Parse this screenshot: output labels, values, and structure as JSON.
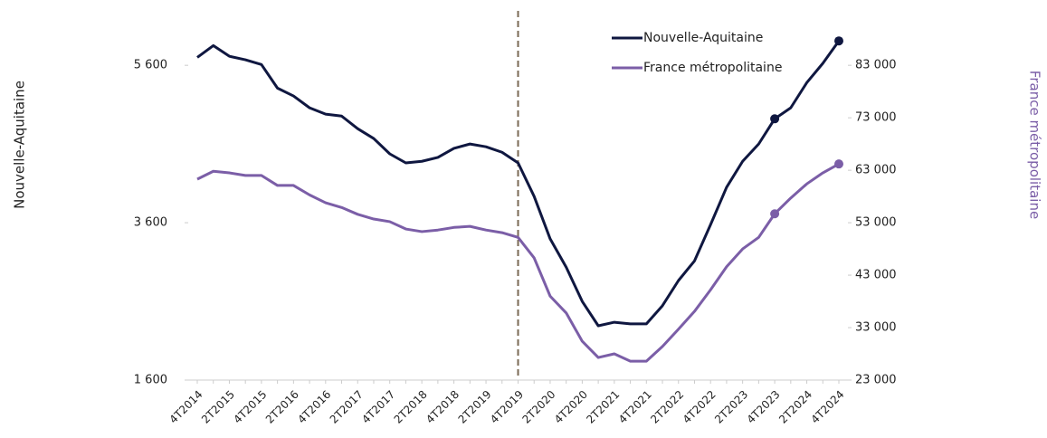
{
  "chart_data": {
    "type": "line",
    "y_label": "Nouvelle-Aquitaine",
    "y2_label": "France métropolitaine",
    "categories": [
      "4T2014",
      null,
      "2T2015",
      null,
      "4T2015",
      null,
      "2T2016",
      null,
      "4T2016",
      null,
      "2T2017",
      null,
      "4T2017",
      null,
      "2T2018",
      null,
      "4T2018",
      null,
      "2T2019",
      null,
      "4T2019",
      null,
      "2T2020",
      null,
      "4T2020",
      null,
      "2T2021",
      null,
      "4T2021",
      null,
      "2T2022",
      null,
      "4T2022",
      null,
      "2T2023",
      null,
      "4T2023",
      null,
      "2T2024",
      null,
      "4T2024"
    ],
    "series": [
      {
        "name": "Nouvelle-Aquitaine",
        "color": "#0f1740",
        "axis": "y",
        "values": [
          5700,
          5850,
          5715,
          5670,
          5610,
          5310,
          5210,
          5060,
          4980,
          4955,
          4795,
          4670,
          4475,
          4360,
          4380,
          4430,
          4545,
          4600,
          4565,
          4495,
          4360,
          3935,
          3395,
          3035,
          2600,
          2290,
          2335,
          2315,
          2315,
          2545,
          2865,
          3115,
          3575,
          4050,
          4380,
          4600,
          4920,
          5060,
          5380,
          5625,
          5910
        ]
      },
      {
        "name": "France métropolitaine",
        "color": "#7b5ea7",
        "axis": "y2",
        "values": [
          61300,
          62800,
          62500,
          62000,
          62000,
          60100,
          60100,
          58300,
          56800,
          55900,
          54600,
          53700,
          53200,
          51800,
          51300,
          51600,
          52100,
          52300,
          51600,
          51100,
          50200,
          46300,
          39000,
          35800,
          30400,
          27300,
          28000,
          26600,
          26600,
          29400,
          32700,
          36100,
          40200,
          44600,
          48000,
          50200,
          54700,
          57700,
          60400,
          62500,
          64200
        ]
      }
    ],
    "marker_indices": [
      36,
      40
    ],
    "reference_line": {
      "category_index": 20,
      "color": "#7a6a55",
      "style": "dashed"
    },
    "ylim": [
      1600,
      6200
    ],
    "yticks": [
      {
        "value": 1600,
        "label": "1 600"
      },
      {
        "value": 3600,
        "label": "3 600"
      },
      {
        "value": 5600,
        "label": "5 600"
      }
    ],
    "y2lim": [
      23000,
      92000
    ],
    "y2ticks": [
      {
        "value": 23000,
        "label": "23 000"
      },
      {
        "value": 33000,
        "label": "33 000"
      },
      {
        "value": 43000,
        "label": "43 000"
      },
      {
        "value": 53000,
        "label": "53 000"
      },
      {
        "value": 63000,
        "label": "63 000"
      },
      {
        "value": 73000,
        "label": "73 000"
      },
      {
        "value": 83000,
        "label": "83 000"
      }
    ],
    "legend": "top",
    "grid": false
  }
}
